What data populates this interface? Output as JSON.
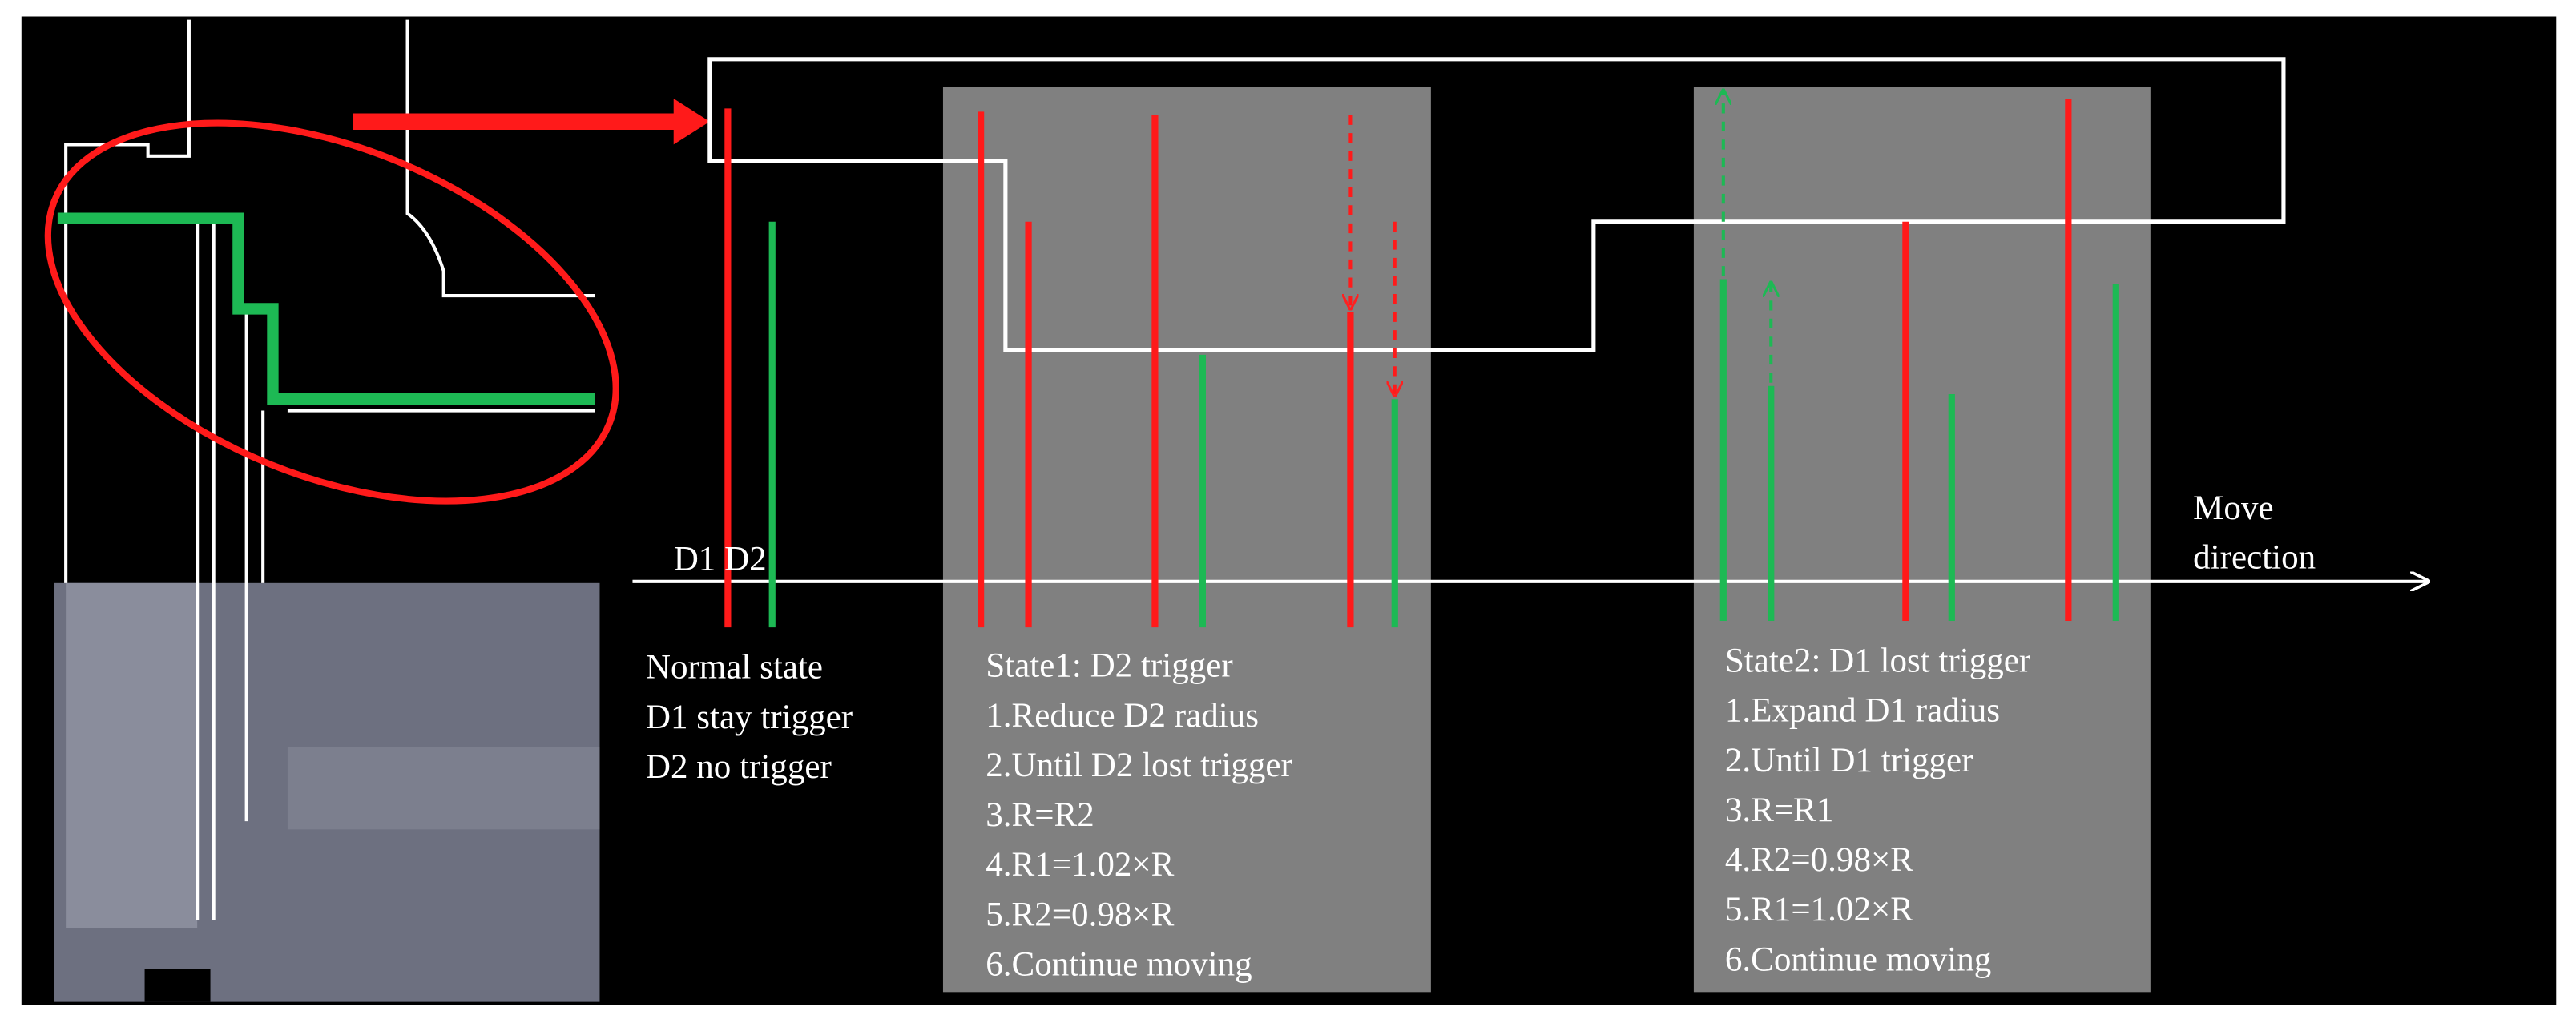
{
  "labels": {
    "d1_d2": "D1 D2",
    "move_direction": [
      "Move",
      "direction"
    ]
  },
  "normal_state": [
    "Normal state",
    "D1 stay trigger",
    "D2 no trigger"
  ],
  "state1": [
    "State1: D2 trigger",
    "1.Reduce D2 radius",
    "2.Until D2 lost trigger",
    "3.R=R2",
    "4.R1=1.02×R",
    "5.R2=0.98×R",
    "6.Continue moving"
  ],
  "state2": [
    "State2: D1 lost trigger",
    "1.Expand D1 radius",
    "2.Until D1 trigger",
    "3.R=R1",
    "4.R2=0.98×R",
    "5.R1=1.02×R",
    "6.Continue moving"
  ]
}
